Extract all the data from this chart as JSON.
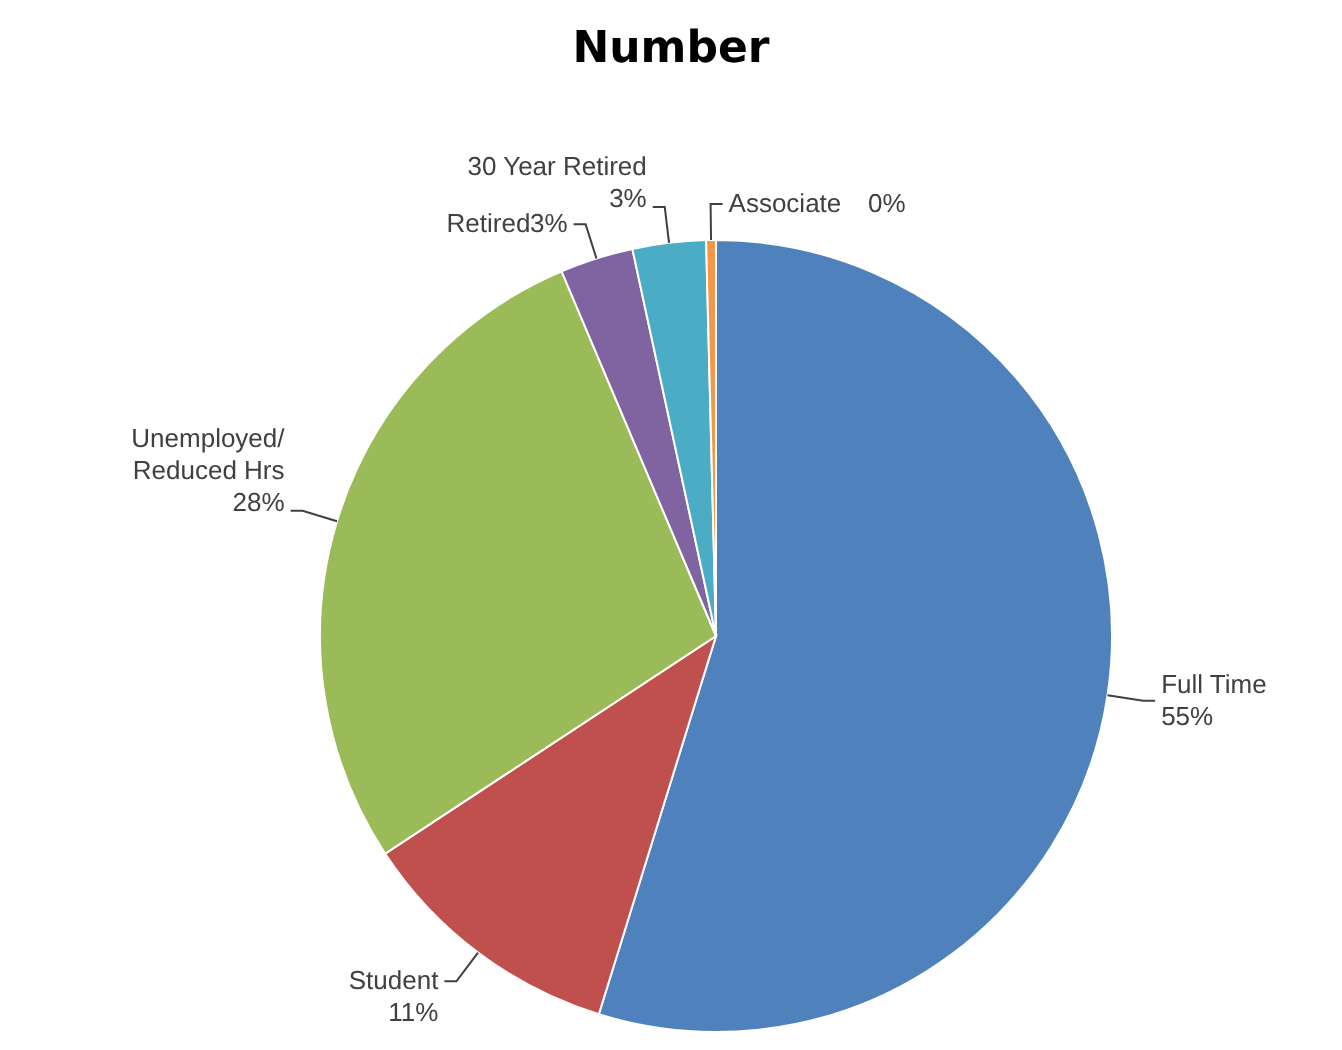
{
  "chart_data": {
    "type": "pie",
    "title": "Number",
    "categories": [
      "Full Time",
      "Student",
      "Unemployed/Reduced Hrs",
      "Retired",
      "30 Year Retired",
      "Associate"
    ],
    "values": [
      55,
      11,
      28,
      3,
      3,
      0.4
    ],
    "colors": [
      "#4f81bd",
      "#c0504d",
      "#9bbb59",
      "#8064a2",
      "#4bacc6",
      "#f79646"
    ],
    "value_labels": [
      "55%",
      "11%",
      "28%",
      "3%",
      "3%",
      "0%"
    ]
  }
}
